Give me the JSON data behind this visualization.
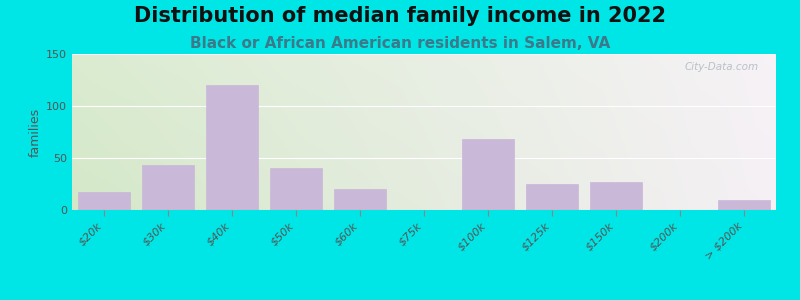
{
  "title": "Distribution of median family income in 2022",
  "subtitle": "Black or African American residents in Salem, VA",
  "ylabel": "families",
  "categories": [
    "$20k",
    "$30k",
    "$40k",
    "$50k",
    "$60k",
    "$75k",
    "$100k",
    "$125k",
    "$150k",
    "$200k",
    "> $200k"
  ],
  "values": [
    17,
    43,
    120,
    40,
    20,
    0,
    68,
    25,
    27,
    0,
    10
  ],
  "bar_color": "#c9b8d8",
  "background_outer": "#00e5e5",
  "bg_left": "#d4e8c8",
  "bg_right": "#f5f0f5",
  "bg_top_right": "#f0eaf5",
  "ylim": [
    0,
    150
  ],
  "yticks": [
    0,
    50,
    100,
    150
  ],
  "title_fontsize": 15,
  "subtitle_fontsize": 11,
  "ylabel_fontsize": 9,
  "tick_fontsize": 8,
  "watermark": "City-Data.com",
  "subtitle_color": "#3a7a8a",
  "title_color": "#111111",
  "tick_color": "#555555"
}
